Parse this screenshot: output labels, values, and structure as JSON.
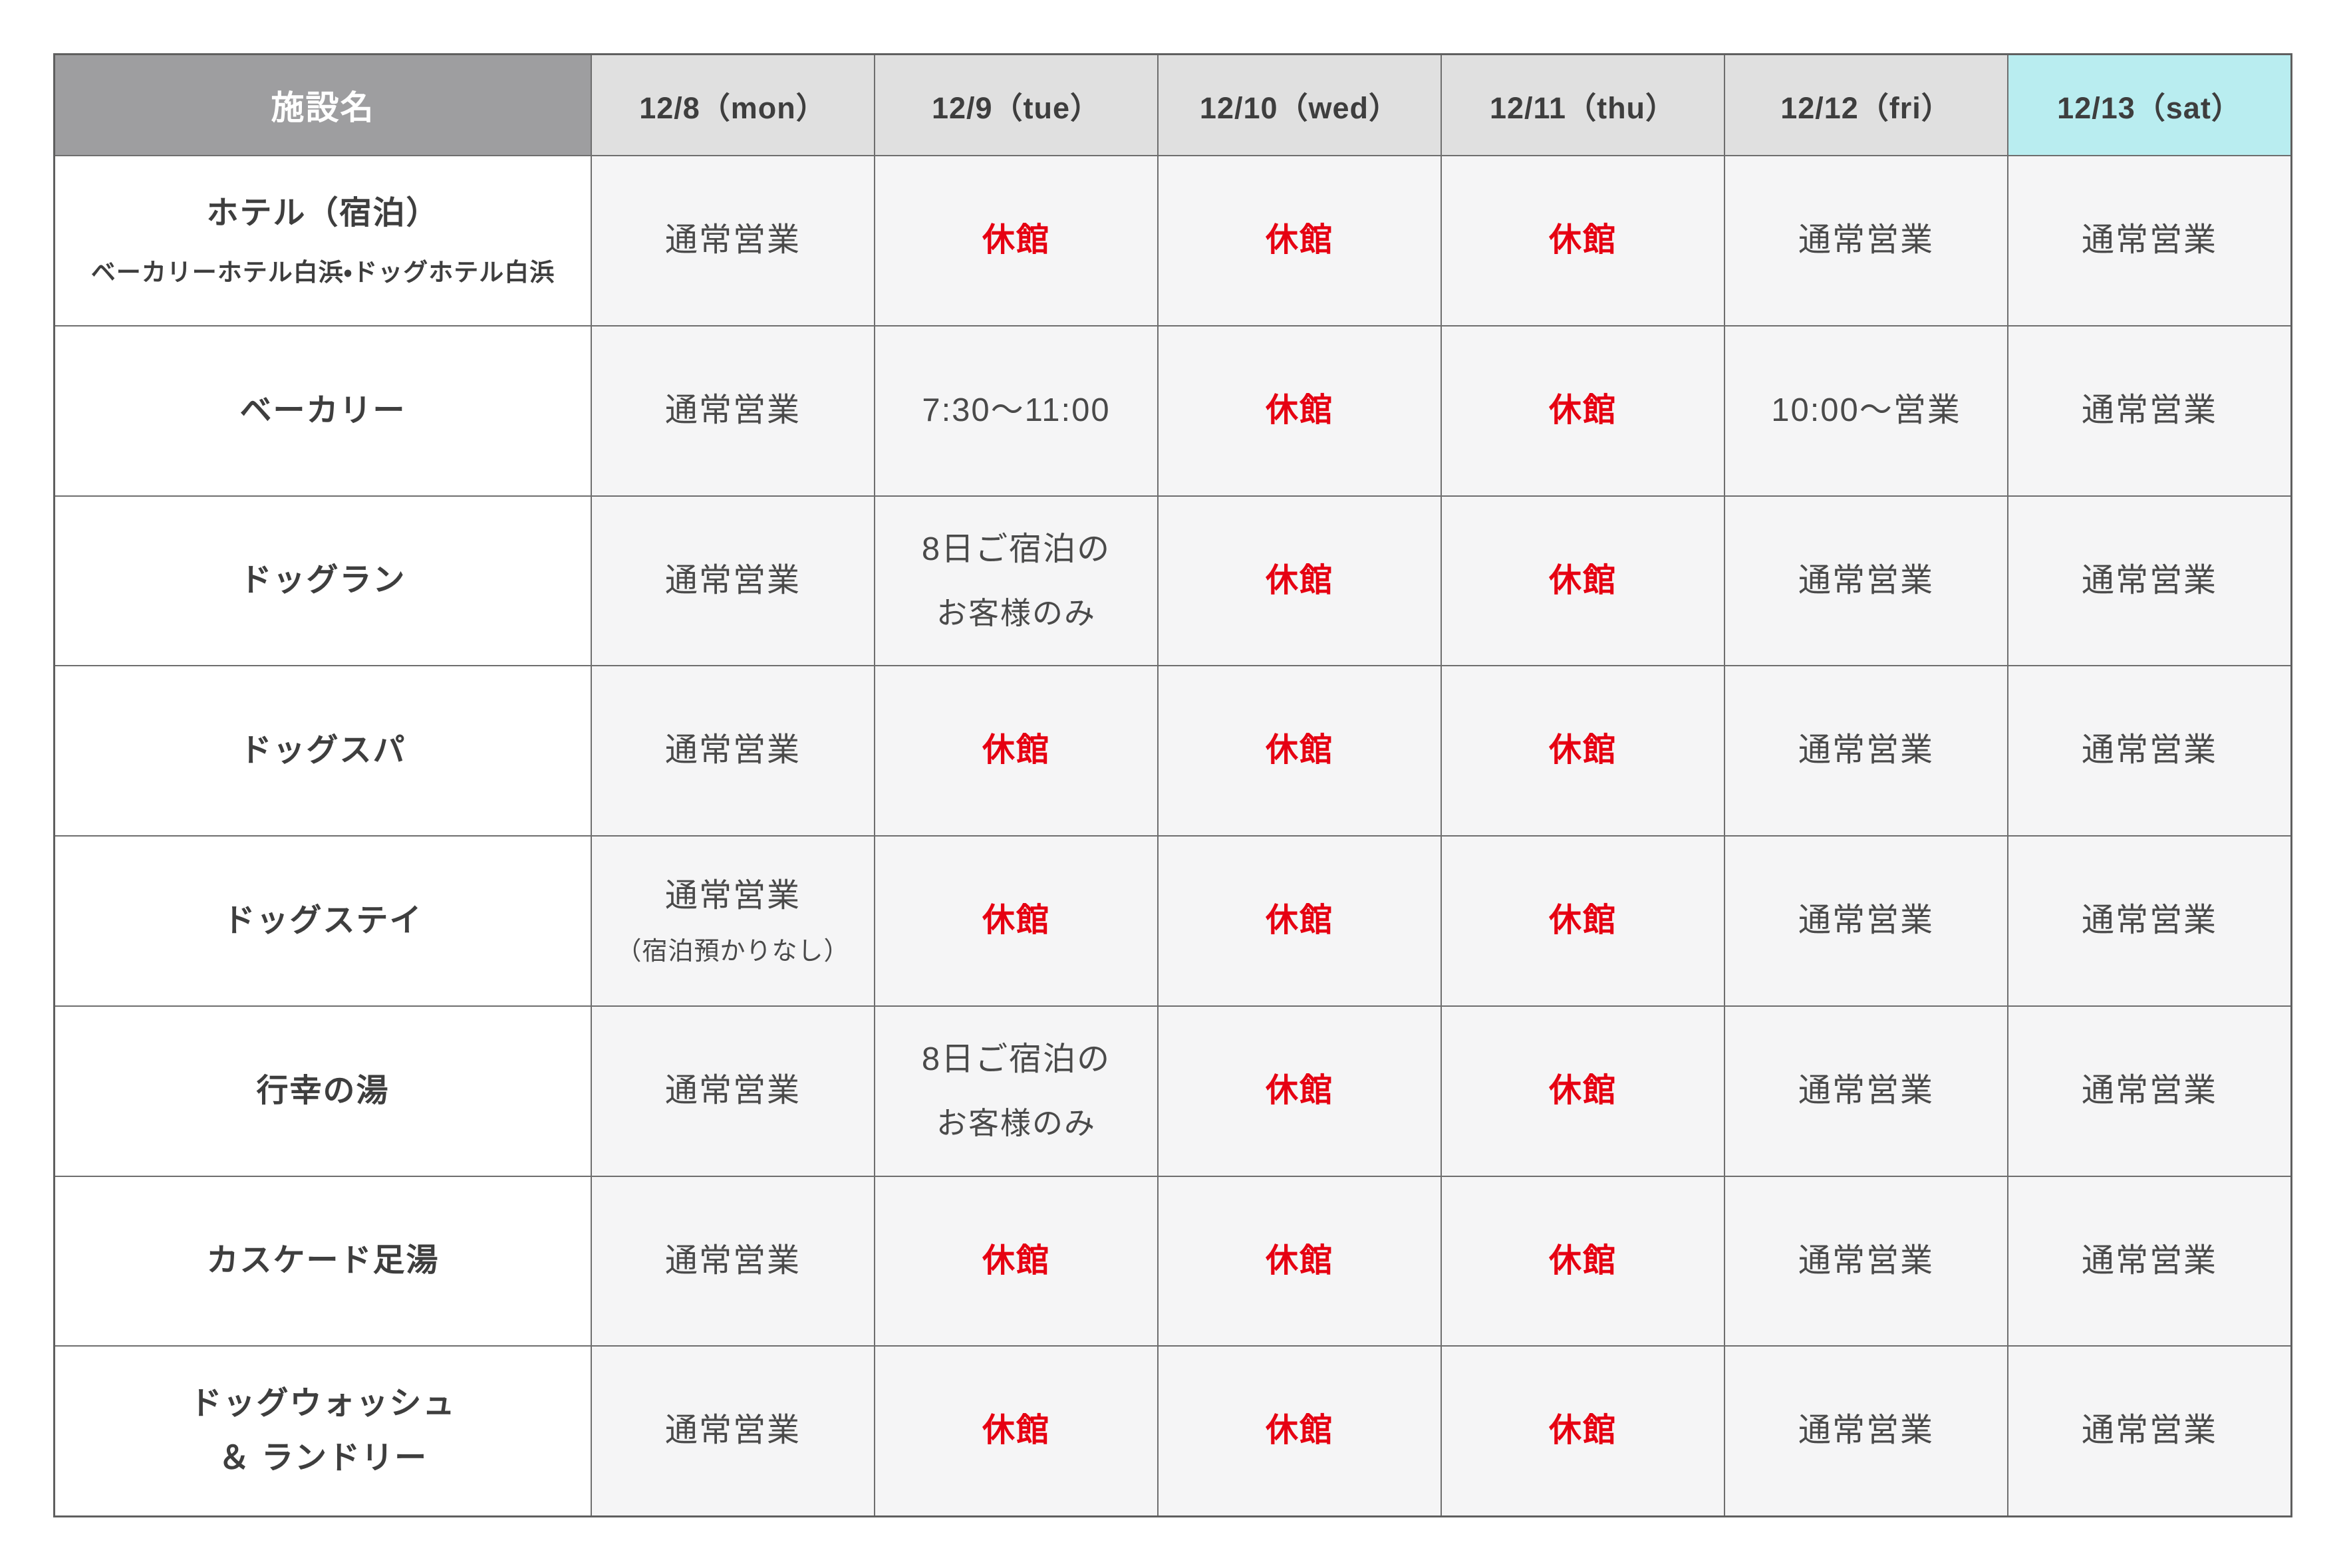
{
  "colors": {
    "header_gray_bg": "#9e9ea0",
    "header_gray_text": "#ffffff",
    "day_header_bg": "#e0e0e0",
    "saturday_header_bg": "#b9edf0",
    "cell_bg": "#f5f5f6",
    "facility_cell_bg": "#ffffff",
    "border": "#6e6e6e",
    "closed_red": "#e60012",
    "text_dark": "#3e3e3e",
    "text_cell": "#4a4a4a"
  },
  "table": {
    "header": {
      "facility_label": "施設名",
      "days": [
        {
          "label": "12/8（mon）",
          "highlight": false
        },
        {
          "label": "12/9（tue）",
          "highlight": false
        },
        {
          "label": "12/10（wed）",
          "highlight": false
        },
        {
          "label": "12/11（thu）",
          "highlight": false
        },
        {
          "label": "12/12（fri）",
          "highlight": false
        },
        {
          "label": "12/13（sat）",
          "highlight": true
        }
      ]
    },
    "open_label": "通常営業",
    "closed_label": "休館",
    "rows": [
      {
        "name": "ホテル（宿泊）",
        "name2": "",
        "sub": "ベーカリーホテル白浜・ドッグホテル白浜",
        "cells": [
          {
            "text": "通常営業",
            "text2": "",
            "sub": "",
            "closed": false
          },
          {
            "text": "休館",
            "text2": "",
            "sub": "",
            "closed": true
          },
          {
            "text": "休館",
            "text2": "",
            "sub": "",
            "closed": true
          },
          {
            "text": "休館",
            "text2": "",
            "sub": "",
            "closed": true
          },
          {
            "text": "通常営業",
            "text2": "",
            "sub": "",
            "closed": false
          },
          {
            "text": "通常営業",
            "text2": "",
            "sub": "",
            "closed": false
          }
        ]
      },
      {
        "name": "ベーカリー",
        "name2": "",
        "sub": "",
        "cells": [
          {
            "text": "通常営業",
            "text2": "",
            "sub": "",
            "closed": false
          },
          {
            "text": "7:30〜11:00",
            "text2": "",
            "sub": "",
            "closed": false
          },
          {
            "text": "休館",
            "text2": "",
            "sub": "",
            "closed": true
          },
          {
            "text": "休館",
            "text2": "",
            "sub": "",
            "closed": true
          },
          {
            "text": "10:00〜営業",
            "text2": "",
            "sub": "",
            "closed": false
          },
          {
            "text": "通常営業",
            "text2": "",
            "sub": "",
            "closed": false
          }
        ]
      },
      {
        "name": "ドッグラン",
        "name2": "",
        "sub": "",
        "cells": [
          {
            "text": "通常営業",
            "text2": "",
            "sub": "",
            "closed": false
          },
          {
            "text": "8日ご宿泊の",
            "text2": "お客様のみ",
            "sub": "",
            "closed": false
          },
          {
            "text": "休館",
            "text2": "",
            "sub": "",
            "closed": true
          },
          {
            "text": "休館",
            "text2": "",
            "sub": "",
            "closed": true
          },
          {
            "text": "通常営業",
            "text2": "",
            "sub": "",
            "closed": false
          },
          {
            "text": "通常営業",
            "text2": "",
            "sub": "",
            "closed": false
          }
        ]
      },
      {
        "name": "ドッグスパ",
        "name2": "",
        "sub": "",
        "cells": [
          {
            "text": "通常営業",
            "text2": "",
            "sub": "",
            "closed": false
          },
          {
            "text": "休館",
            "text2": "",
            "sub": "",
            "closed": true
          },
          {
            "text": "休館",
            "text2": "",
            "sub": "",
            "closed": true
          },
          {
            "text": "休館",
            "text2": "",
            "sub": "",
            "closed": true
          },
          {
            "text": "通常営業",
            "text2": "",
            "sub": "",
            "closed": false
          },
          {
            "text": "通常営業",
            "text2": "",
            "sub": "",
            "closed": false
          }
        ]
      },
      {
        "name": "ドッグステイ",
        "name2": "",
        "sub": "",
        "cells": [
          {
            "text": "通常営業",
            "text2": "",
            "sub": "（宿泊預かりなし）",
            "closed": false
          },
          {
            "text": "休館",
            "text2": "",
            "sub": "",
            "closed": true
          },
          {
            "text": "休館",
            "text2": "",
            "sub": "",
            "closed": true
          },
          {
            "text": "休館",
            "text2": "",
            "sub": "",
            "closed": true
          },
          {
            "text": "通常営業",
            "text2": "",
            "sub": "",
            "closed": false
          },
          {
            "text": "通常営業",
            "text2": "",
            "sub": "",
            "closed": false
          }
        ]
      },
      {
        "name": "行幸の湯",
        "name2": "",
        "sub": "",
        "cells": [
          {
            "text": "通常営業",
            "text2": "",
            "sub": "",
            "closed": false
          },
          {
            "text": "8日ご宿泊の",
            "text2": "お客様のみ",
            "sub": "",
            "closed": false
          },
          {
            "text": "休館",
            "text2": "",
            "sub": "",
            "closed": true
          },
          {
            "text": "休館",
            "text2": "",
            "sub": "",
            "closed": true
          },
          {
            "text": "通常営業",
            "text2": "",
            "sub": "",
            "closed": false
          },
          {
            "text": "通常営業",
            "text2": "",
            "sub": "",
            "closed": false
          }
        ]
      },
      {
        "name": "カスケード足湯",
        "name2": "",
        "sub": "",
        "cells": [
          {
            "text": "通常営業",
            "text2": "",
            "sub": "",
            "closed": false
          },
          {
            "text": "休館",
            "text2": "",
            "sub": "",
            "closed": true
          },
          {
            "text": "休館",
            "text2": "",
            "sub": "",
            "closed": true
          },
          {
            "text": "休館",
            "text2": "",
            "sub": "",
            "closed": true
          },
          {
            "text": "通常営業",
            "text2": "",
            "sub": "",
            "closed": false
          },
          {
            "text": "通常営業",
            "text2": "",
            "sub": "",
            "closed": false
          }
        ]
      },
      {
        "name": "ドッグウォッシュ",
        "name2": "＆ ランドリー",
        "sub": "",
        "cells": [
          {
            "text": "通常営業",
            "text2": "",
            "sub": "",
            "closed": false
          },
          {
            "text": "休館",
            "text2": "",
            "sub": "",
            "closed": true
          },
          {
            "text": "休館",
            "text2": "",
            "sub": "",
            "closed": true
          },
          {
            "text": "休館",
            "text2": "",
            "sub": "",
            "closed": true
          },
          {
            "text": "通常営業",
            "text2": "",
            "sub": "",
            "closed": false
          },
          {
            "text": "通常営業",
            "text2": "",
            "sub": "",
            "closed": false
          }
        ]
      }
    ]
  }
}
